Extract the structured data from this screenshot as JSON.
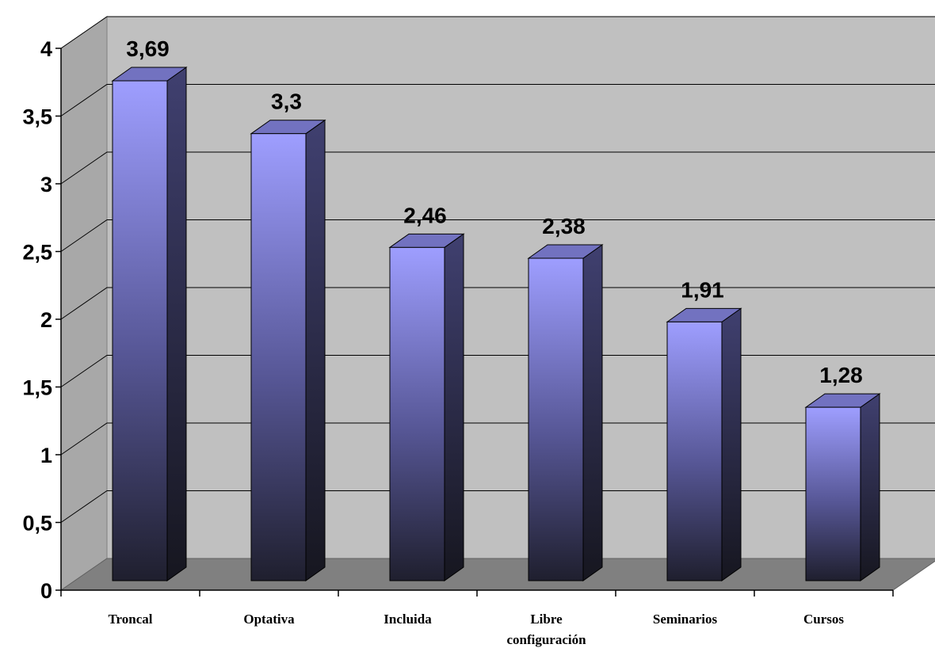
{
  "chart_data": {
    "type": "bar",
    "categories": [
      "Troncal",
      "Optativa",
      "Incluida",
      [
        "Libre",
        "configuración"
      ],
      "Seminarios",
      "Cursos"
    ],
    "values": [
      3.69,
      3.3,
      2.46,
      2.38,
      1.91,
      1.28
    ],
    "value_labels": [
      "3,69",
      "3,3",
      "2,46",
      "2,38",
      "1,91",
      "1,28"
    ],
    "y_ticks": [
      "0",
      "0,5",
      "1",
      "1,5",
      "2",
      "2,5",
      "3",
      "3,5",
      "4"
    ],
    "ylim": [
      0,
      4
    ],
    "grid": true,
    "style": "3d-column",
    "colors": {
      "wall": "#c0c0c0",
      "floor": "#808080",
      "bar_front_top": "#9e9eff",
      "bar_front_mid": "#565695",
      "bar_front_bottom": "#1f1f2e",
      "bar_side": "#33335a",
      "bar_top": "#7272c0",
      "gridline": "#000000"
    }
  }
}
